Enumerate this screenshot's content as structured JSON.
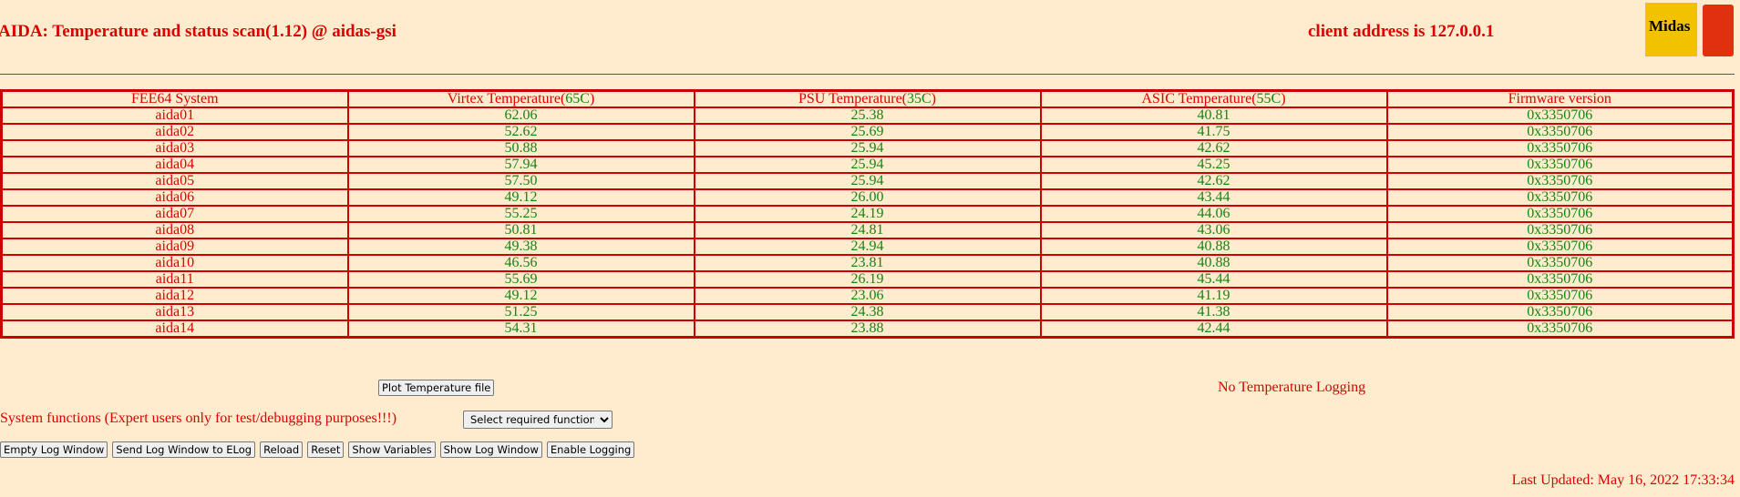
{
  "header": {
    "title": "AIDA: Temperature and status scan(1.12) @ aidas-gsi",
    "client": "client address is 127.0.0.1",
    "logo": "Midas"
  },
  "table": {
    "columns": [
      [
        "FEE64 System"
      ],
      [
        "Virtex Temperature(",
        "65C",
        ")"
      ],
      [
        "PSU Temperature(",
        "35C",
        ")"
      ],
      [
        "ASIC Temperature(",
        "55C",
        ")"
      ],
      [
        "Firmware version"
      ]
    ],
    "rows": [
      [
        "aida01",
        "62.06",
        "25.38",
        "40.81",
        "0x3350706"
      ],
      [
        "aida02",
        "52.62",
        "25.69",
        "41.75",
        "0x3350706"
      ],
      [
        "aida03",
        "50.88",
        "25.94",
        "42.62",
        "0x3350706"
      ],
      [
        "aida04",
        "57.94",
        "25.94",
        "45.25",
        "0x3350706"
      ],
      [
        "aida05",
        "57.50",
        "25.94",
        "42.62",
        "0x3350706"
      ],
      [
        "aida06",
        "49.12",
        "26.00",
        "43.44",
        "0x3350706"
      ],
      [
        "aida07",
        "55.25",
        "24.19",
        "44.06",
        "0x3350706"
      ],
      [
        "aida08",
        "50.81",
        "24.81",
        "43.06",
        "0x3350706"
      ],
      [
        "aida09",
        "49.38",
        "24.94",
        "40.88",
        "0x3350706"
      ],
      [
        "aida10",
        "46.56",
        "23.81",
        "40.88",
        "0x3350706"
      ],
      [
        "aida11",
        "55.69",
        "26.19",
        "45.44",
        "0x3350706"
      ],
      [
        "aida12",
        "49.12",
        "23.06",
        "41.19",
        "0x3350706"
      ],
      [
        "aida13",
        "51.25",
        "24.38",
        "41.38",
        "0x3350706"
      ],
      [
        "aida14",
        "54.31",
        "23.88",
        "42.44",
        "0x3350706"
      ]
    ]
  },
  "controls": {
    "plot_button": "Plot Temperature file",
    "logging_status": "No Temperature Logging",
    "system_functions": "System functions (Expert users only for test/debugging purposes!!!)",
    "select": "Select required function",
    "buttons": [
      "Empty Log Window",
      "Send Log Window to ELog",
      "Reload",
      "Reset",
      "Show Variables",
      "Show Log Window",
      "Enable Logging"
    ]
  },
  "footer": {
    "last_updated": "Last Updated: May 16, 2022 17:33:34"
  }
}
